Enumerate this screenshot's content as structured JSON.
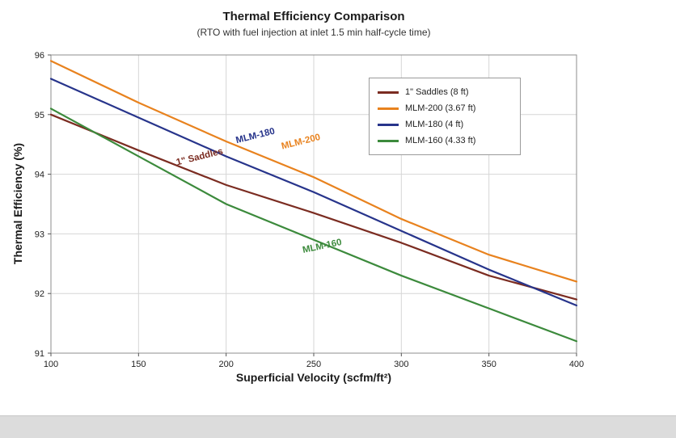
{
  "page": {
    "background": "#ffffff",
    "bottom_strip_color": "#dcdcdc"
  },
  "chart_data": {
    "type": "line",
    "title": "Thermal Efficiency Comparison",
    "subtitle": "(RTO with fuel injection at inlet 1.5 min half-cycle time)",
    "xlabel": "Superficial Velocity (scfm/ft²)",
    "ylabel": "Thermal Efficiency (%)",
    "xlim": [
      100,
      400
    ],
    "ylim": [
      91,
      96
    ],
    "xticks": [
      100,
      150,
      200,
      250,
      300,
      350,
      400
    ],
    "yticks": [
      91,
      92,
      93,
      94,
      95,
      96
    ],
    "grid": true,
    "gridline_color": "#d6d6d6",
    "axis_border_color": "#8c8c8c",
    "legend_position": "top-right",
    "x": [
      100,
      150,
      200,
      250,
      300,
      350,
      400
    ],
    "series": [
      {
        "name": "1\" Saddles (8 ft)",
        "color": "#7b2c21",
        "values": [
          95.0,
          94.4,
          93.82,
          93.35,
          92.85,
          92.3,
          91.9
        ]
      },
      {
        "name": "MLM-200 (3.67 ft)",
        "color": "#e8821e",
        "values": [
          95.9,
          95.2,
          94.55,
          93.95,
          93.25,
          92.65,
          92.2
        ]
      },
      {
        "name": "MLM-180 (4 ft)",
        "color": "#27348b",
        "values": [
          95.6,
          94.95,
          94.3,
          93.7,
          93.05,
          92.4,
          91.8
        ]
      },
      {
        "name": "MLM-160 (4.33 ft)",
        "color": "#3c8a3c",
        "values": [
          95.1,
          94.3,
          93.5,
          92.9,
          92.3,
          91.75,
          91.2
        ]
      }
    ],
    "inline_labels": [
      {
        "text": "1\" Saddles",
        "color": "#7b2c21",
        "x": 172,
        "y": 94.15,
        "angle": -14
      },
      {
        "text": "MLM-180",
        "color": "#27348b",
        "x": 206,
        "y": 94.52,
        "angle": -14
      },
      {
        "text": "MLM-200",
        "color": "#e8821e",
        "x": 232,
        "y": 94.42,
        "angle": -14
      },
      {
        "text": "MLM-160",
        "color": "#3c8a3c",
        "x": 244,
        "y": 92.68,
        "angle": -12
      }
    ]
  }
}
